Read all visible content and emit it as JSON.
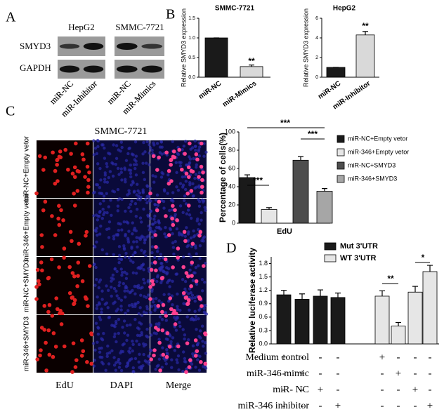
{
  "figure": {
    "panel_labels": [
      "A",
      "B",
      "C",
      "D"
    ],
    "blot": {
      "cell_lines": [
        "HepG2",
        "SMMC-7721"
      ],
      "proteins": [
        "SMYD3",
        "GAPDH"
      ],
      "lanes": [
        [
          "miR-NC",
          "miR-Inhibitor"
        ],
        [
          "miR-NC",
          "miR-Mimics"
        ]
      ]
    },
    "microscopy": {
      "title": "SMMC-7721",
      "rows": [
        "miR-NC+Empty vetor",
        "miR-346+Empty vetor",
        "miR-NC+SMYD3",
        "miR-346+SMYD3"
      ],
      "columns": [
        "EdU",
        "DAPI",
        "Merge"
      ]
    }
  },
  "chart_data": [
    {
      "type": "bar",
      "title": "SMMC-7721",
      "y_label": "Relative SMYD3 expression",
      "categories": [
        "miR-NC",
        "miR-Mimics"
      ],
      "values": [
        1.0,
        0.27
      ],
      "errors": [
        0,
        0.04
      ],
      "colors": [
        "#1a1a1a",
        "#d9d9d9"
      ],
      "ylim": [
        0,
        1.5
      ],
      "yticks": [
        {
          "value": 0,
          "label": "0.0"
        },
        0.5,
        {
          "value": 1,
          "label": "1.0"
        },
        1.5
      ],
      "annotations": [
        "**"
      ]
    },
    {
      "type": "bar",
      "title": "HepG2",
      "y_label": "Relative SMYD3 expression",
      "categories": [
        "miR-NC",
        "miR-Inhibitor"
      ],
      "values": [
        1.0,
        4.3
      ],
      "errors": [
        0,
        0.35
      ],
      "colors": [
        "#1a1a1a",
        "#d9d9d9"
      ],
      "ylim": [
        0,
        6
      ],
      "yticks": [
        0,
        2,
        4,
        6
      ],
      "annotations": [
        "**"
      ]
    },
    {
      "type": "bar",
      "y_label": "Percentage of cells(%)",
      "x_label": "EdU",
      "series": [
        {
          "name": "miR-NC+Empty vetor",
          "color": "#1a1a1a",
          "values": [
            50
          ],
          "errors": [
            3
          ]
        },
        {
          "name": "miR-346+Empty vetor",
          "color": "#e6e6e6",
          "values": [
            15
          ],
          "errors": [
            2
          ]
        },
        {
          "name": "miR-NC+SMYD3",
          "color": "#4d4d4d",
          "values": [
            69
          ],
          "errors": [
            4
          ]
        },
        {
          "name": "miR-346+SMYD3",
          "color": "#a6a6a6",
          "values": [
            35
          ],
          "errors": [
            3
          ]
        }
      ],
      "ylim": [
        0,
        100
      ],
      "yticks": [
        0,
        20,
        40,
        60,
        80,
        100
      ],
      "annotations": [
        "***",
        "***",
        "***"
      ]
    },
    {
      "type": "bar",
      "y_label": "Relative luciferase activity",
      "series": [
        {
          "name": "Mut 3'UTR",
          "color": "#1a1a1a",
          "values": [
            1.1,
            1.0,
            1.07,
            1.04
          ],
          "errors": [
            0.1,
            0.12,
            0.14,
            0.1
          ]
        },
        {
          "name": "WT 3'UTR",
          "color": "#e6e6e6",
          "values": [
            1.07,
            0.4,
            1.16,
            1.62
          ],
          "errors": [
            0.12,
            0.08,
            0.13,
            0.14
          ]
        }
      ],
      "ylim": [
        0,
        1.95
      ],
      "yticks": [
        {
          "value": 0,
          "label": "0.0"
        },
        0.3,
        0.6,
        0.9,
        1.2,
        1.5,
        1.8
      ],
      "annotations": [
        "**",
        "*"
      ],
      "conditions": [
        {
          "label": "Medium control",
          "signs": [
            "+",
            "-",
            "-",
            "-",
            "+",
            "-",
            "-",
            "-"
          ]
        },
        {
          "label": "miR-346 mimic",
          "signs": [
            "-",
            "+",
            "-",
            "-",
            "-",
            "+",
            "-",
            "-"
          ]
        },
        {
          "label": "miR- NC",
          "signs": [
            "-",
            "-",
            "+",
            "-",
            "-",
            "-",
            "+",
            "-"
          ]
        },
        {
          "label": "miR-346 inhibitor",
          "signs": [
            "-",
            "-",
            "-",
            "+",
            "-",
            "-",
            "-",
            "+"
          ]
        }
      ]
    }
  ]
}
